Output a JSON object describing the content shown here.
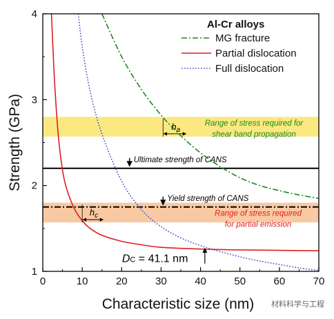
{
  "chart_data": {
    "type": "line",
    "xlabel": "Characteristic size (nm)",
    "ylabel": "Strength (GPa)",
    "xlim": [
      0,
      70
    ],
    "ylim": [
      1,
      4
    ],
    "x_ticks": [
      "0",
      "10",
      "20",
      "30",
      "40",
      "50",
      "60",
      "70"
    ],
    "y_ticks": [
      "1",
      "2",
      "3",
      "4"
    ],
    "grid": false,
    "legend": {
      "title": "Al-Cr alloys",
      "placement": "top-right",
      "entries": [
        "MG fracture",
        "Partial dislocation",
        "Full dislocation"
      ]
    },
    "series": [
      {
        "name": "MG fracture",
        "style": "dash-dot",
        "color": "#1a8a1a",
        "x": [
          15,
          20,
          25,
          30,
          35,
          40,
          45,
          50,
          55,
          60,
          65,
          70
        ],
        "y": [
          4.0,
          3.5,
          3.12,
          2.82,
          2.58,
          2.38,
          2.22,
          2.09,
          2.0,
          1.94,
          1.89,
          1.85
        ]
      },
      {
        "name": "Partial dislocation",
        "style": "solid",
        "color": "#e01e1e",
        "x": [
          2.2,
          3,
          4,
          5,
          6,
          8,
          10,
          12,
          15,
          20,
          25,
          30,
          40,
          50,
          60,
          70
        ],
        "y": [
          4.0,
          3.2,
          2.55,
          2.18,
          1.97,
          1.73,
          1.59,
          1.5,
          1.42,
          1.35,
          1.31,
          1.28,
          1.26,
          1.25,
          1.245,
          1.24
        ]
      },
      {
        "name": "Full dislocation",
        "style": "dotted",
        "color": "#3a4fc4",
        "x": [
          9,
          10,
          12,
          15,
          20,
          25,
          30,
          35,
          40,
          45,
          50,
          55,
          60,
          65,
          70
        ],
        "y": [
          4.0,
          3.62,
          3.1,
          2.6,
          2.05,
          1.72,
          1.52,
          1.39,
          1.3,
          1.23,
          1.17,
          1.12,
          1.08,
          1.04,
          1.01
        ]
      }
    ],
    "bands": [
      {
        "name": "shear-band-range",
        "y": [
          2.57,
          2.8
        ],
        "color": "#fbe880",
        "label_lines": [
          "Range of stress required for",
          "shear band propagation"
        ],
        "label_color": "#1a8a1a"
      },
      {
        "name": "partial-emission-range",
        "y": [
          1.57,
          1.8
        ],
        "color": "#f9c9a3",
        "label_lines": [
          "Range of stress required",
          "for partial emission"
        ],
        "label_color": "#e01e1e"
      }
    ],
    "reference_lines": [
      {
        "name": "ultimate-strength",
        "y": 2.2,
        "style": "solid",
        "label": "Ultimate strength of CANS",
        "arrow_x": 22
      },
      {
        "name": "yield-strength",
        "y": 1.75,
        "style": "dash-dot",
        "label": "Yield strength of CANS",
        "arrow_x": 30.5
      }
    ],
    "annotations": {
      "ha": {
        "symbol": "h",
        "subscript": "a",
        "x1": 30.5,
        "x2": 36.5,
        "y": 2.57
      },
      "hc": {
        "symbol": "h",
        "subscript": "c",
        "x1": 10,
        "x2": 15.5,
        "y": 1.57
      },
      "dc": {
        "symbol": "D",
        "subscript": "C",
        "text": " = 41.1 nm",
        "x": 41.1,
        "y": 1.3
      }
    },
    "watermark": "材料科学与工程"
  }
}
